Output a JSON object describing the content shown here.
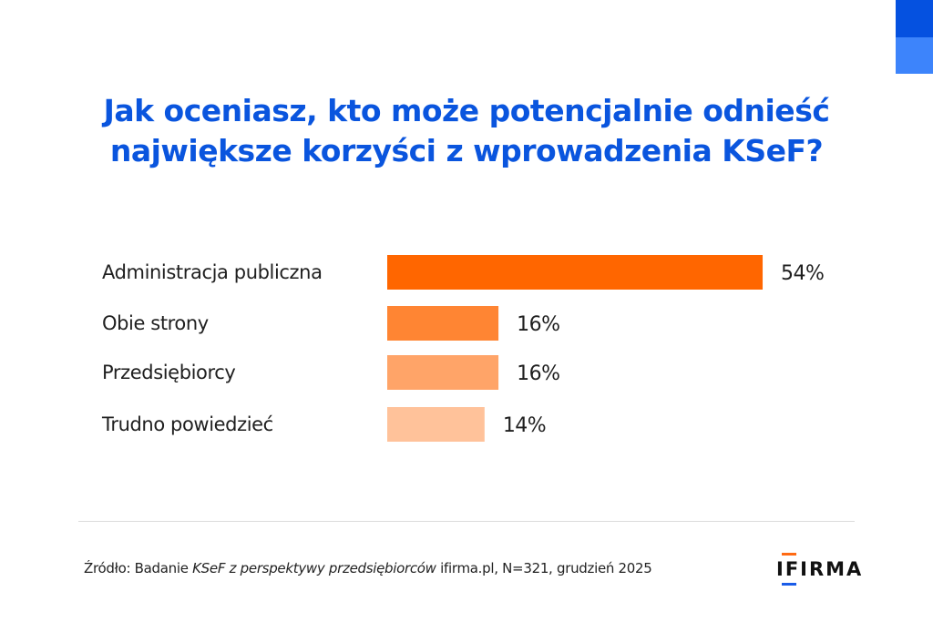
{
  "title": {
    "line1": "Jak oceniasz, kto może potencjalnie odnieść",
    "line2": "największe korzyści z wprowadzenia KSeF?"
  },
  "chart_data": {
    "type": "bar",
    "orientation": "horizontal",
    "title": "Jak oceniasz, kto może potencjalnie odnieść największe korzyści z wprowadzenia KSeF?",
    "categories": [
      "Administracja publiczna",
      "Obie strony",
      "Przedsiębiorcy",
      "Trudno powiedzieć"
    ],
    "values": [
      54,
      16,
      16,
      14
    ],
    "value_labels": [
      "54%",
      "16%",
      "16%",
      "14%"
    ],
    "colors": [
      "#ff6600",
      "#ff8533",
      "#ffa468",
      "#ffc29a"
    ],
    "unit": "%",
    "xlim": [
      0,
      60
    ],
    "grid": false
  },
  "source": {
    "prefix": "Źródło: Badanie ",
    "italic": "KSeF z perspektywy przedsiębiorców",
    "suffix": " ifirma.pl, N=321, grudzień 2025"
  },
  "logo": {
    "text": "IFIRMA"
  },
  "colors": {
    "title": "#0a55de",
    "accent_dark": "#0551e0",
    "accent_light": "#3d84fb"
  }
}
